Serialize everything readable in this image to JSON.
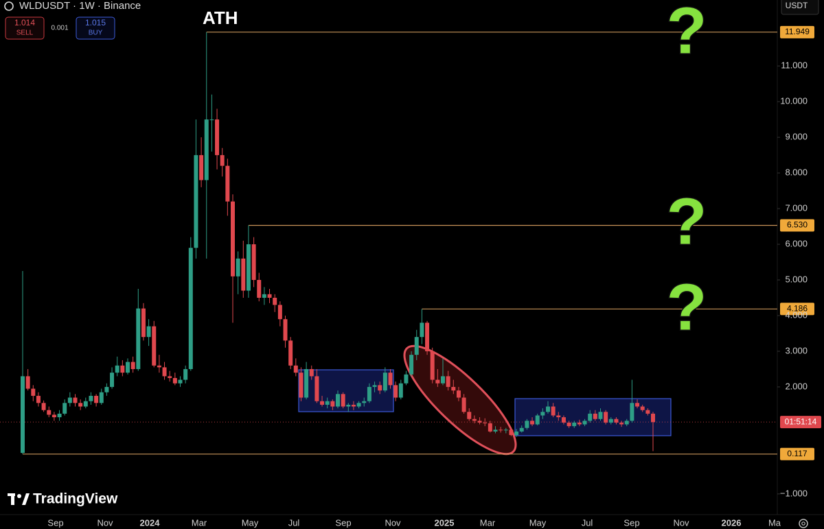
{
  "header": {
    "symbol": "WLDUSDT · 1W · Binance",
    "sell_price": "1.014",
    "sell_label": "SELL",
    "spread": "0.001",
    "buy_price": "1.015",
    "buy_label": "BUY",
    "currency": "USDT",
    "logo": "TradingView"
  },
  "chart_data": {
    "type": "candlestick",
    "up_color": "#2e9e86",
    "down_color": "#e0484e",
    "level_color": "#c9955a",
    "level_label_color": "#f0a93a",
    "open": [
      0.15,
      2.3,
      1.95,
      1.75,
      1.55,
      1.35,
      1.22,
      1.15,
      1.25,
      1.55,
      1.7,
      1.55,
      1.45,
      1.6,
      1.75,
      1.55,
      1.85,
      2.0,
      2.4,
      2.6,
      2.4,
      2.7,
      2.5,
      4.2,
      3.4,
      3.7,
      2.6,
      2.55,
      2.3,
      2.25,
      2.1,
      2.2,
      2.5,
      5.9,
      8.5,
      7.8,
      9.5,
      9.5,
      8.5,
      8.2,
      7.2,
      5.1,
      5.6,
      4.7,
      6.0,
      5.0,
      4.5,
      4.6,
      4.5,
      4.3,
      3.9,
      3.3,
      2.6,
      2.4,
      1.7,
      2.5,
      2.3,
      1.6,
      1.5,
      1.6,
      1.45,
      1.8,
      1.45,
      1.5,
      1.45,
      1.55,
      1.6,
      2.0,
      2.05,
      1.9,
      2.4,
      2.05,
      1.7,
      2.1,
      2.35,
      2.9,
      3.4,
      3.8,
      3.0,
      2.2,
      2.1,
      2.3,
      2.0,
      1.9,
      1.7,
      1.3,
      1.1,
      1.05,
      1.0,
      0.98,
      0.75,
      0.8,
      0.79,
      0.8,
      0.65,
      0.75,
      0.85,
      1.05,
      0.95,
      1.2,
      1.3,
      1.45,
      1.2,
      1.15,
      1.0,
      0.9,
      1.0,
      0.95,
      1.05,
      1.25,
      1.1,
      1.3,
      1.0,
      1.1,
      1.0,
      0.95,
      1.05,
      1.55,
      1.45,
      1.35,
      1.25
    ],
    "high": [
      5.25,
      2.5,
      2.05,
      1.85,
      1.62,
      1.45,
      1.3,
      1.35,
      1.65,
      1.85,
      1.8,
      1.65,
      1.7,
      1.85,
      1.8,
      1.95,
      2.1,
      2.55,
      2.85,
      2.75,
      2.8,
      2.85,
      4.75,
      4.35,
      3.9,
      3.85,
      2.9,
      2.7,
      2.45,
      2.4,
      2.3,
      2.6,
      6.2,
      9.5,
      9.0,
      11.949,
      10.2,
      9.8,
      8.7,
      8.4,
      7.4,
      5.8,
      6.1,
      6.53,
      6.2,
      5.2,
      4.8,
      4.75,
      4.6,
      4.4,
      4.0,
      3.4,
      2.8,
      2.55,
      2.7,
      2.6,
      2.5,
      1.75,
      1.7,
      1.65,
      1.9,
      1.85,
      1.55,
      1.6,
      1.6,
      1.7,
      2.1,
      2.15,
      2.15,
      2.55,
      2.5,
      2.15,
      2.2,
      2.45,
      3.0,
      3.6,
      4.186,
      3.85,
      3.1,
      2.5,
      2.8,
      2.45,
      2.2,
      2.0,
      1.8,
      1.4,
      1.2,
      1.15,
      1.12,
      1.05,
      0.9,
      0.88,
      0.85,
      0.85,
      0.82,
      0.92,
      1.1,
      1.15,
      1.25,
      1.4,
      1.6,
      1.55,
      1.3,
      1.2,
      1.05,
      1.05,
      1.08,
      1.1,
      1.35,
      1.35,
      1.4,
      1.35,
      1.15,
      1.15,
      1.05,
      1.1,
      2.2,
      1.65,
      1.5,
      1.4,
      1.3
    ],
    "low": [
      0.117,
      1.9,
      1.6,
      1.45,
      1.3,
      1.15,
      1.05,
      1.05,
      1.2,
      1.45,
      1.45,
      1.35,
      1.4,
      1.5,
      1.45,
      1.5,
      1.75,
      1.95,
      2.3,
      2.3,
      2.35,
      2.4,
      2.45,
      3.3,
      3.15,
      2.55,
      2.4,
      2.2,
      2.15,
      2.05,
      2.0,
      2.1,
      2.45,
      5.6,
      7.6,
      5.6,
      8.6,
      8.1,
      7.9,
      6.8,
      3.8,
      4.6,
      4.5,
      4.5,
      4.8,
      4.4,
      4.3,
      4.35,
      4.1,
      3.7,
      3.1,
      2.5,
      2.3,
      1.6,
      1.65,
      2.2,
      1.55,
      1.45,
      1.4,
      1.35,
      1.4,
      1.4,
      1.3,
      1.35,
      1.4,
      1.45,
      1.55,
      1.85,
      1.8,
      1.85,
      1.95,
      1.6,
      1.65,
      2.05,
      2.3,
      2.75,
      3.2,
      2.9,
      2.1,
      2.0,
      2.05,
      1.9,
      1.8,
      1.6,
      1.25,
      1.05,
      0.98,
      0.95,
      0.9,
      0.72,
      0.7,
      0.72,
      0.7,
      0.62,
      0.6,
      0.72,
      0.8,
      0.9,
      0.92,
      1.1,
      1.25,
      1.15,
      1.05,
      0.95,
      0.85,
      0.85,
      0.9,
      0.9,
      1.0,
      1.05,
      1.05,
      0.95,
      0.95,
      0.95,
      0.88,
      0.9,
      1.0,
      1.4,
      1.3,
      1.2,
      0.2
    ],
    "close": [
      2.3,
      1.95,
      1.75,
      1.55,
      1.35,
      1.22,
      1.15,
      1.25,
      1.55,
      1.7,
      1.55,
      1.45,
      1.6,
      1.75,
      1.55,
      1.85,
      2.0,
      2.4,
      2.6,
      2.4,
      2.7,
      2.5,
      4.2,
      3.4,
      3.7,
      2.6,
      2.55,
      2.3,
      2.25,
      2.1,
      2.2,
      2.5,
      5.9,
      8.5,
      7.8,
      9.5,
      9.5,
      8.5,
      8.2,
      7.2,
      5.1,
      5.6,
      4.7,
      6.0,
      5.0,
      4.5,
      4.6,
      4.5,
      4.3,
      3.9,
      3.3,
      2.6,
      2.4,
      1.7,
      2.5,
      2.3,
      1.6,
      1.5,
      1.6,
      1.45,
      1.8,
      1.45,
      1.5,
      1.45,
      1.55,
      1.6,
      2.0,
      2.05,
      1.9,
      2.4,
      2.05,
      1.7,
      2.1,
      2.35,
      2.9,
      3.4,
      3.8,
      3.0,
      2.2,
      2.1,
      2.3,
      2.0,
      1.9,
      1.7,
      1.3,
      1.1,
      1.05,
      1.0,
      0.98,
      0.75,
      0.8,
      0.79,
      0.8,
      0.65,
      0.75,
      0.85,
      1.05,
      0.95,
      1.2,
      1.3,
      1.45,
      1.2,
      1.15,
      1.0,
      0.9,
      1.0,
      0.95,
      1.05,
      1.25,
      1.1,
      1.3,
      1.0,
      1.1,
      1.0,
      0.95,
      1.05,
      1.55,
      1.45,
      1.35,
      1.25,
      1.014
    ],
    "ylim": [
      -1.58,
      12.85
    ],
    "yticks": [
      {
        "value": -1,
        "label": "−1.000"
      },
      {
        "value": 2,
        "label": "2.000"
      },
      {
        "value": 3,
        "label": "3.000"
      },
      {
        "value": 4,
        "label": "4.000"
      },
      {
        "value": 5,
        "label": "5.000"
      },
      {
        "value": 6,
        "label": "6.000"
      },
      {
        "value": 7,
        "label": "7.000"
      },
      {
        "value": 8,
        "label": "8.000"
      },
      {
        "value": 9,
        "label": "9.000"
      },
      {
        "value": 10,
        "label": "10.000"
      },
      {
        "value": 11,
        "label": "11.000"
      }
    ],
    "xticks": [
      "Sep",
      "Nov",
      "2024",
      "Mar",
      "May",
      "Jul",
      "Sep",
      "Nov",
      "2025",
      "Mar",
      "May",
      "Jul",
      "Sep",
      "Nov",
      "2026",
      "Ma"
    ],
    "levels": [
      {
        "value": 11.949,
        "label": "11.949"
      },
      {
        "value": 6.53,
        "label": "6.530"
      },
      {
        "value": 4.186,
        "label": "4.186"
      },
      {
        "value": 0.117,
        "label": "0.117"
      }
    ],
    "countdown": "01:51:14",
    "annotations": [
      "ATH",
      "?",
      "?",
      "?"
    ]
  }
}
